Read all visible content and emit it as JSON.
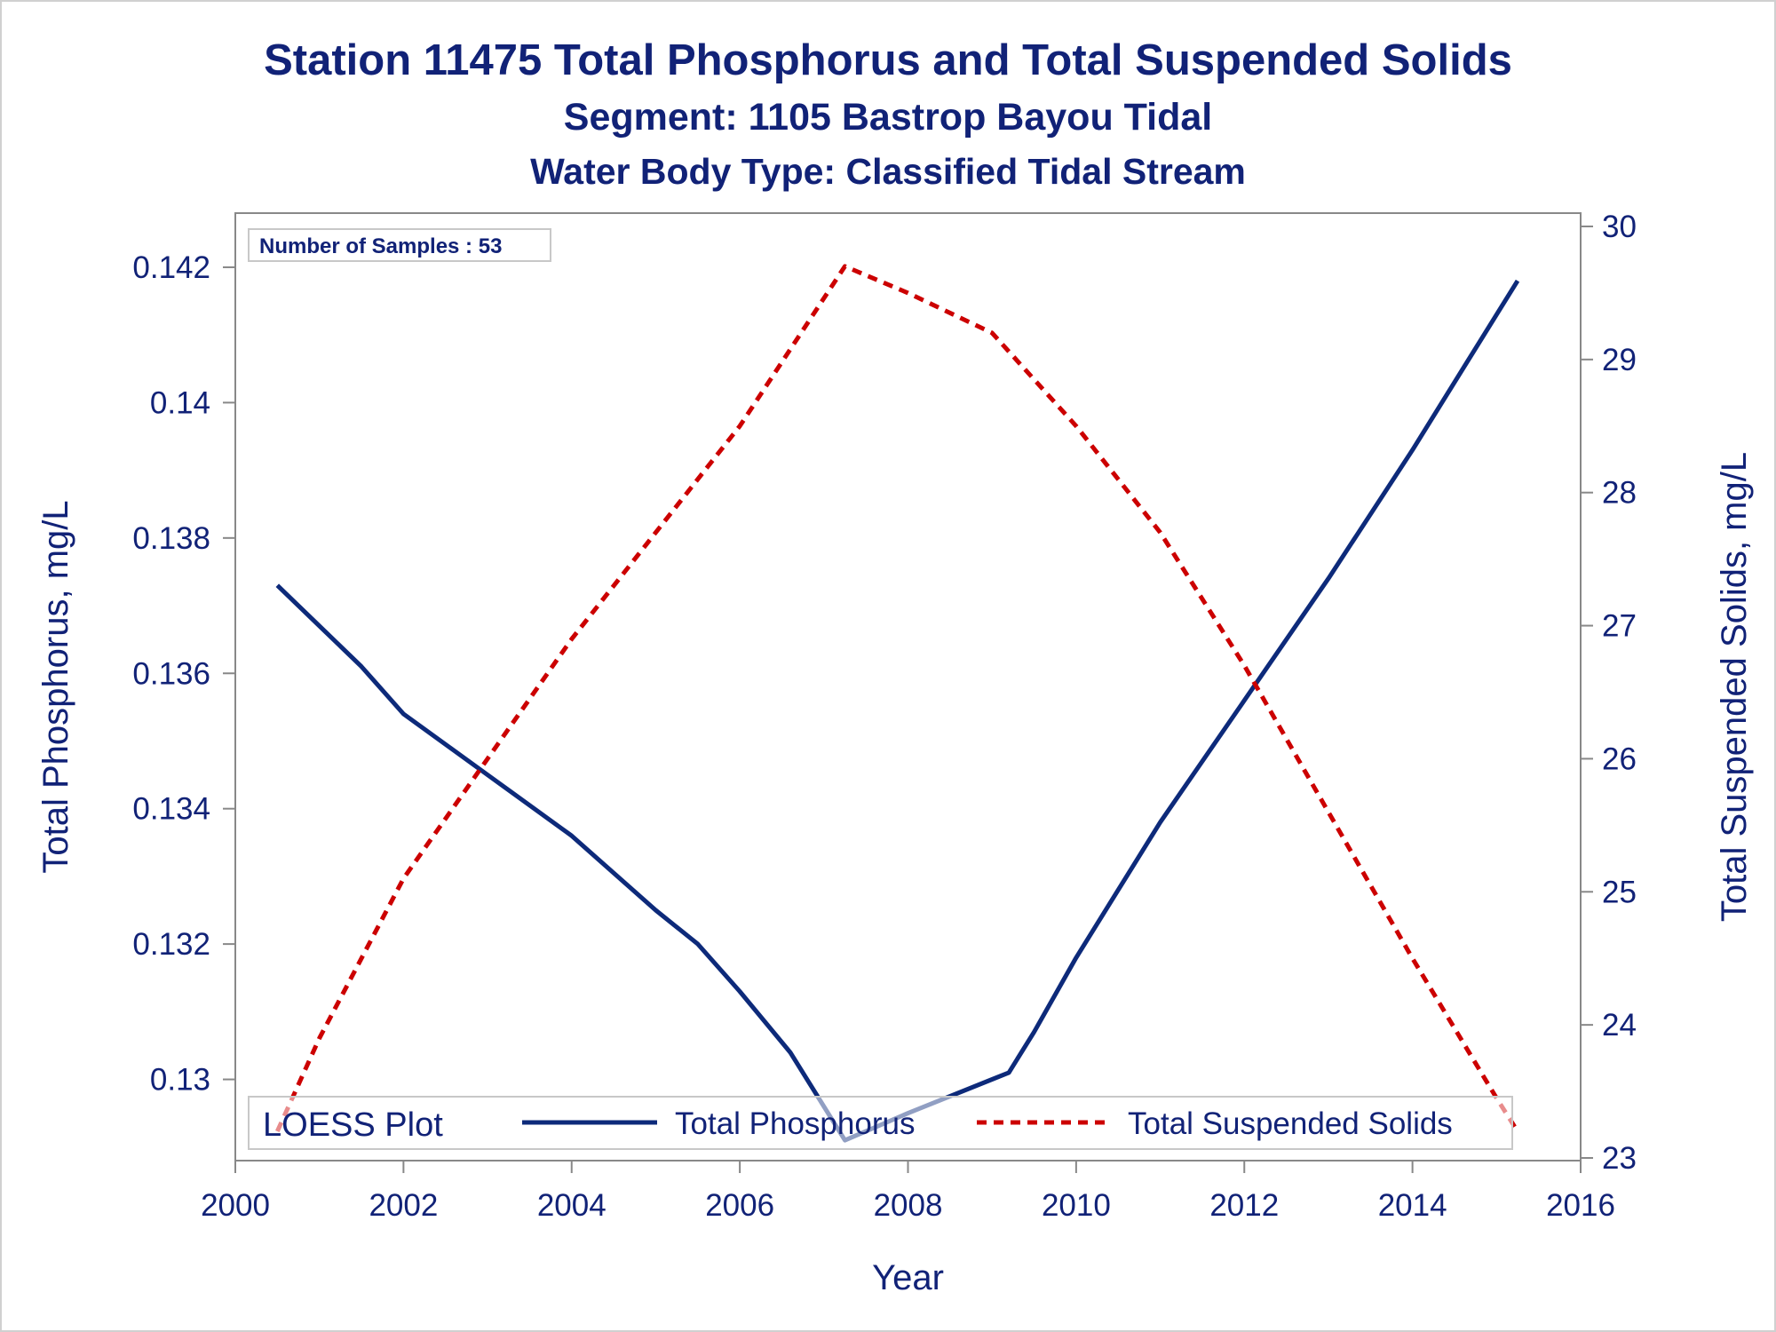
{
  "header": {
    "title": "Station 11475  Total Phosphorus and Total Suspended Solids",
    "subtitle": "Segment: 1105  Bastrop Bayou Tidal",
    "subtitle2": "Water Body Type: Classified Tidal Stream"
  },
  "colors": {
    "text": "#112277",
    "phosphorus_line": "#0d2a7a",
    "tss_line": "#cc0000",
    "axis": "#888888"
  },
  "chart_data": {
    "type": "line",
    "title": "Station 11475  Total Phosphorus and Total Suspended Solids",
    "xlabel": "Year",
    "ylabel": "Total Phosphorus, mg/L",
    "y2label": "Total Suspended Solids, mg/L",
    "xlim": [
      2000,
      2016
    ],
    "ylim": [
      0.1288,
      0.1428
    ],
    "y2lim": [
      22.98,
      30.1
    ],
    "x_ticks": [
      "2000",
      "2002",
      "2004",
      "2006",
      "2008",
      "2010",
      "2012",
      "2014",
      "2016"
    ],
    "y_ticks": [
      "0.13",
      "0.132",
      "0.134",
      "0.136",
      "0.138",
      "0.14",
      "0.142"
    ],
    "y2_ticks": [
      "23",
      "24",
      "25",
      "26",
      "27",
      "28",
      "29",
      "30"
    ],
    "inset_label": "Number of Samples : 53",
    "legend": {
      "title": "LOESS Plot",
      "placement": "bottom-inside",
      "entries": [
        "Total Phosphorus",
        "Total Suspended Solids"
      ]
    },
    "series": [
      {
        "name": "Total Phosphorus",
        "axis": "left",
        "style": "solid",
        "x": [
          2000.5,
          2001.0,
          2001.5,
          2002.0,
          2003.0,
          2004.0,
          2005.0,
          2005.5,
          2006.0,
          2006.6,
          2007.25,
          2008.0,
          2009.0,
          2009.2,
          2009.5,
          2010.0,
          2011.0,
          2012.0,
          2013.0,
          2014.0,
          2015.0,
          2015.25
        ],
        "values": [
          0.1373,
          0.1367,
          0.1361,
          0.1354,
          0.1345,
          0.1336,
          0.1325,
          0.132,
          0.1313,
          0.1304,
          0.1291,
          0.1295,
          0.13,
          0.1301,
          0.1307,
          0.1318,
          0.1338,
          0.1356,
          0.1374,
          0.1393,
          0.1413,
          0.1418
        ]
      },
      {
        "name": "Total Suspended Solids",
        "axis": "right",
        "style": "dashed",
        "x": [
          2000.5,
          2001.0,
          2002.0,
          2003.0,
          2004.0,
          2005.0,
          2006.0,
          2007.25,
          2008.0,
          2009.0,
          2010.0,
          2011.0,
          2012.0,
          2013.0,
          2014.0,
          2015.0,
          2015.25
        ],
        "values": [
          23.2,
          23.9,
          25.1,
          26.0,
          26.9,
          27.7,
          28.5,
          29.7,
          29.5,
          29.2,
          28.5,
          27.7,
          26.7,
          25.6,
          24.5,
          23.45,
          23.2
        ]
      }
    ]
  }
}
